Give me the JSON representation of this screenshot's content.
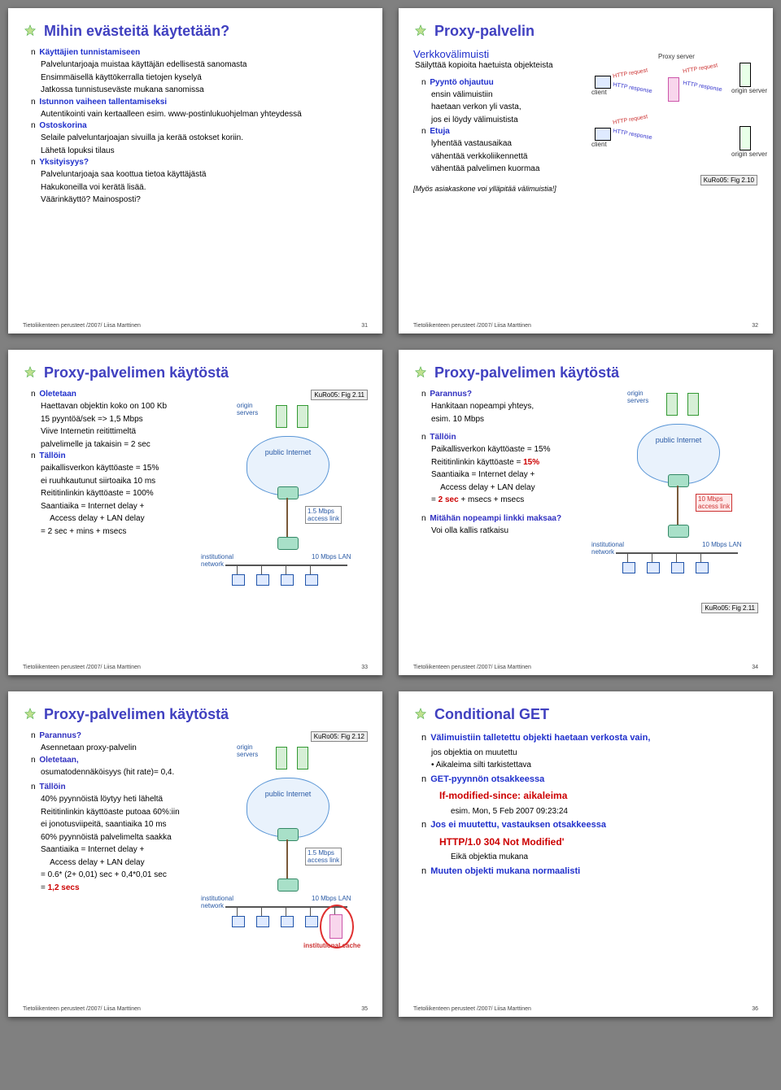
{
  "footer_text": "Tietoliikenteen perusteet /2007/ Liisa Marttinen",
  "colors": {
    "title": "#4040c0",
    "accent_blue": "#2030cc",
    "accent_red": "#cc0000",
    "cloud_fill": "#e9f2fc",
    "cloud_border": "#5a96d6",
    "page_bg": "#808080"
  },
  "proxy_diagram": {
    "labels": {
      "proxy": "Proxy server",
      "origin1": "origin server",
      "origin2": "origin server",
      "client1": "client",
      "client2": "client",
      "req": "HTTP request",
      "resp": "HTTP response"
    }
  },
  "net_diagram": {
    "origin_servers": "origin servers",
    "public_internet": "public Internet",
    "access_link_rate": "1.5 Mbps",
    "access_link": "access link",
    "fast_access": "10 Mbps",
    "fast_access_lbl": "access link",
    "lan": "10 Mbps LAN",
    "inst_net": "institutional network",
    "inst_cache": "institutional cache"
  },
  "slides": [
    {
      "num": 31,
      "title": "Mihin evästeitä käytetään?",
      "items": [
        {
          "h": "Käyttäjien tunnistamiseen",
          "lines": [
            "Palveluntarjoaja muistaa käyttäjän edellisestä sanomasta",
            "Ensimmäisellä käyttökerralla tietojen kyselyä",
            "Jatkossa tunnistuseväste mukana sanomissa"
          ]
        },
        {
          "h": "Istunnon vaiheen tallentamiseksi",
          "lines": [
            "Autentikointi vain kertaalleen esim. www-postinlukuohjelman yhteydessä"
          ]
        },
        {
          "h": "Ostoskorina",
          "lines": [
            "Selaile palveluntarjoajan sivuilla ja kerää ostokset koriin.",
            "Lähetä lopuksi tilaus"
          ]
        },
        {
          "h": "Yksityisyys?",
          "lines": [
            "Palveluntarjoaja saa koottua tietoa käyttäjästä",
            "Hakukoneilla voi kerätä lisää.",
            "Väärinkäyttö? Mainosposti?"
          ]
        }
      ]
    },
    {
      "num": 32,
      "title": "Proxy-palvelin",
      "ref": "KuRo05: Fig 2.10",
      "cache_heading": "Verkkovälimuisti",
      "cache_sub": "Säilyttää kopioita haetuista objekteista",
      "items": [
        {
          "h": "Pyyntö ohjautuu",
          "lines": [
            "ensin välimuistiin",
            "haetaan verkon yli vasta,",
            "jos ei löydy välimuistista"
          ]
        },
        {
          "h": "Etuja",
          "lines": [
            "lyhentää vastausaikaa",
            "vähentää verkkoliikennettä",
            "vähentää palvelimen kuormaa"
          ]
        }
      ],
      "note": "[Myös asiakaskone voi ylläpitää välimuistia!]"
    },
    {
      "num": 33,
      "title": "Proxy-palvelimen käytöstä",
      "ref": "KuRo05: Fig 2.11",
      "items": [
        {
          "h": "Oletetaan",
          "lines": [
            "Haettavan objektin koko on 100 Kb",
            "15 pyyntöä/sek => 1,5 Mbps",
            "Viive Internetin reitittimeltä",
            "palvelimelle ja takaisin = 2 sec"
          ]
        },
        {
          "h": "Tällöin",
          "lines": [
            "paikallisverkon käyttöaste = 15%",
            "ei ruuhkautunut siirtoaika 10 ms",
            "",
            "Reititinlinkin käyttöaste = 100%",
            "Saantiaika = Internet delay +",
            "    Access delay + LAN delay",
            "= 2 sec + mins + msecs"
          ]
        }
      ]
    },
    {
      "num": 34,
      "title": "Proxy-palvelimen käytöstä",
      "ref": "KuRo05: Fig 2.11",
      "items": [
        {
          "h": "Parannus?",
          "lines": [
            "Hankitaan nopeampi yhteys,",
            "esim. 10 Mbps"
          ]
        },
        {
          "h": "Tällöin",
          "lines": [
            "Paikallisverkon käyttöaste = 15%",
            "Reititinlinkin käyttöaste = ",
            "Saantiaika = Internet delay +",
            "    Access delay + LAN delay",
            "= ",
            ""
          ],
          "inline_red_15": "15%",
          "inline_red_2sec": "2 sec",
          "inline_plus": " + msecs + msecs"
        },
        {
          "h": "Mitähän nopeampi linkki maksaa?",
          "lines": [
            "Voi olla kallis ratkaisu"
          ]
        }
      ]
    },
    {
      "num": 35,
      "title": "Proxy-palvelimen käytöstä",
      "ref": "KuRo05: Fig 2.12",
      "items": [
        {
          "h": "Parannus?",
          "lines": [
            "Asennetaan proxy-palvelin"
          ]
        },
        {
          "h": "Oletetaan,",
          "lines": [
            "osumatodennäköisyys (hit rate)= 0,4."
          ]
        },
        {
          "h": "Tällöin",
          "lines": [
            "40% pyynnöistä löytyy heti läheltä",
            "Reititinlinkin käyttöaste putoaa 60%:iin",
            "ei jonotusviipeitä, saantiaika 10 ms",
            "60% pyynnöistä palvelimelta saakka",
            "",
            "Saantiaika = Internet delay +",
            "    Access delay + LAN delay",
            "= 0.6* (2+ 0,01) sec + 0,4*0,01 sec",
            "= "
          ],
          "result": "1,2 secs"
        }
      ]
    },
    {
      "num": 36,
      "title": "Conditional GET",
      "items": [
        {
          "h": "Välimuistiin talletettu objekti haetaan verkosta vain,",
          "lines": [
            "jos objektia on muutettu",
            "• Aikaleima silti tarkistettava"
          ]
        },
        {
          "h": "GET-pyynnön otsakkeessa",
          "lines": []
        },
        {
          "h": "If-modified-since: aikaleima",
          "special_color": "#cc0000",
          "lines": [
            "esim. Mon, 5 Feb 2007 09:23:24"
          ],
          "indent": true
        },
        {
          "h": "Jos ei muutettu, vastauksen otsakkeessa",
          "lines": []
        },
        {
          "h": "HTTP/1.0 304 Not Modified'",
          "special_color": "#cc0000",
          "lines": [
            "Eikä objektia mukana"
          ],
          "indent": true
        },
        {
          "h": "Muuten objekti mukana normaalisti",
          "lines": []
        }
      ]
    }
  ]
}
